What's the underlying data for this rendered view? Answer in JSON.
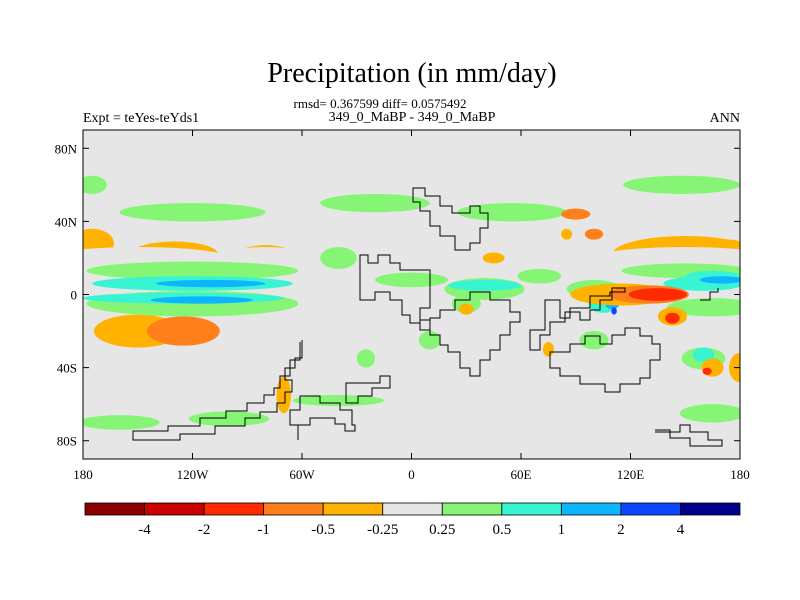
{
  "title": "Precipitation (in mm/day)",
  "stats_line": "rmsd= 0.367599 diff= 0.0575492",
  "subtitle": "349_0_MaBP - 349_0_MaBP",
  "left_label": "Expt = teYes-teYds1",
  "right_label": "ANN",
  "chart_data": {
    "type": "heatmap",
    "variable": "Precipitation difference",
    "units": "mm/day",
    "x_axis": {
      "range": [
        -180,
        180
      ],
      "ticks": [
        -180,
        -120,
        -60,
        0,
        60,
        120,
        180
      ],
      "tick_labels": [
        "180",
        "120W",
        "60W",
        "0",
        "60E",
        "120E",
        "180"
      ]
    },
    "y_axis": {
      "range": [
        -90,
        90
      ],
      "ticks": [
        80,
        40,
        0,
        -40,
        -80
      ],
      "tick_labels": [
        "80N",
        "40N",
        "0",
        "40S",
        "80S"
      ]
    },
    "colorbar": {
      "levels": [
        -4,
        -2,
        -1,
        -0.5,
        -0.25,
        0.25,
        0.5,
        1,
        2,
        4
      ],
      "level_labels": [
        "-4",
        "-2",
        "-1",
        "-0.5",
        "-0.25",
        "0.25",
        "0.5",
        "1",
        "2",
        "4"
      ],
      "colors": [
        "#8b0000",
        "#cc0000",
        "#ff2a00",
        "#ff7f1a",
        "#ffb300",
        "#e6e6e6",
        "#86f576",
        "#37f5d2",
        "#0fb4ff",
        "#0a46ff",
        "#00008b"
      ]
    },
    "background_color": "#e6e6e6",
    "regions": [
      {
        "cls": 4,
        "lon": -175,
        "lat": 28,
        "w": 12,
        "h": 8
      },
      {
        "cls": 4,
        "lon": -130,
        "lat": 22,
        "w": 24,
        "h": 7
      },
      {
        "cls": 4,
        "lon": -80,
        "lat": 22,
        "w": 15,
        "h": 5
      },
      {
        "cls": 4,
        "lon": 150,
        "lat": 22,
        "w": 40,
        "h": 10
      },
      {
        "cls": 4,
        "lon": -150,
        "lat": -20,
        "w": 24,
        "h": 9
      },
      {
        "cls": 3,
        "lon": -125,
        "lat": -20,
        "w": 20,
        "h": 8
      },
      {
        "cls": 4,
        "lon": -70,
        "lat": -55,
        "w": 4,
        "h": 10
      },
      {
        "cls": 3,
        "lon": 100,
        "lat": 33,
        "w": 5,
        "h": 3
      },
      {
        "cls": 4,
        "lon": 85,
        "lat": 33,
        "w": 3,
        "h": 3
      },
      {
        "cls": 4,
        "lon": 180,
        "lat": -40,
        "w": 6,
        "h": 8
      },
      {
        "cls": 4,
        "lon": 175,
        "lat": 22,
        "w": 10,
        "h": 8
      },
      {
        "cls": 5,
        "lon": -150,
        "lat": 20,
        "w": 50,
        "h": 6
      },
      {
        "cls": 5,
        "lon": 150,
        "lat": 20,
        "w": 50,
        "h": 6
      },
      {
        "cls": 5,
        "lon": -80,
        "lat": 20,
        "w": 25,
        "h": 6
      },
      {
        "cls": 6,
        "lon": -175,
        "lat": 60,
        "w": 8,
        "h": 5
      },
      {
        "cls": 6,
        "lon": -120,
        "lat": 45,
        "w": 40,
        "h": 5
      },
      {
        "cls": 6,
        "lon": -20,
        "lat": 50,
        "w": 30,
        "h": 5
      },
      {
        "cls": 6,
        "lon": 55,
        "lat": 45,
        "w": 30,
        "h": 5
      },
      {
        "cls": 6,
        "lon": 148,
        "lat": 60,
        "w": 32,
        "h": 5
      },
      {
        "cls": 6,
        "lon": -120,
        "lat": 13,
        "w": 58,
        "h": 5
      },
      {
        "cls": 6,
        "lon": 150,
        "lat": 13,
        "w": 35,
        "h": 4
      },
      {
        "cls": 6,
        "lon": -120,
        "lat": -5,
        "w": 58,
        "h": 7
      },
      {
        "cls": 6,
        "lon": 165,
        "lat": -7,
        "w": 25,
        "h": 5
      },
      {
        "cls": 6,
        "lon": 0,
        "lat": 8,
        "w": 20,
        "h": 4
      },
      {
        "cls": 6,
        "lon": 40,
        "lat": 3,
        "w": 22,
        "h": 6
      },
      {
        "cls": 6,
        "lon": 70,
        "lat": 10,
        "w": 12,
        "h": 4
      },
      {
        "cls": 6,
        "lon": 100,
        "lat": 3,
        "w": 15,
        "h": 5
      },
      {
        "cls": 6,
        "lon": -160,
        "lat": -70,
        "w": 22,
        "h": 4
      },
      {
        "cls": 6,
        "lon": -100,
        "lat": -68,
        "w": 22,
        "h": 4
      },
      {
        "cls": 6,
        "lon": -40,
        "lat": -58,
        "w": 25,
        "h": 3
      },
      {
        "cls": 6,
        "lon": 165,
        "lat": -65,
        "w": 18,
        "h": 5
      },
      {
        "cls": 6,
        "lon": 100,
        "lat": -25,
        "w": 8,
        "h": 5
      },
      {
        "cls": 6,
        "lon": 160,
        "lat": -35,
        "w": 12,
        "h": 6
      },
      {
        "cls": 6,
        "lon": -25,
        "lat": -35,
        "w": 5,
        "h": 5
      },
      {
        "cls": 6,
        "lon": 10,
        "lat": -25,
        "w": 6,
        "h": 5
      },
      {
        "cls": 6,
        "lon": -40,
        "lat": 20,
        "w": 10,
        "h": 6
      },
      {
        "cls": 6,
        "lon": 30,
        "lat": -5,
        "w": 8,
        "h": 5
      },
      {
        "cls": 7,
        "lon": -120,
        "lat": 6,
        "w": 55,
        "h": 4
      },
      {
        "cls": 7,
        "lon": -125,
        "lat": -2,
        "w": 55,
        "h": 3
      },
      {
        "cls": 7,
        "lon": 40,
        "lat": 5,
        "w": 20,
        "h": 3
      },
      {
        "cls": 7,
        "lon": 160,
        "lat": 6,
        "w": 22,
        "h": 4
      },
      {
        "cls": 7,
        "lon": 165,
        "lat": 10,
        "w": 15,
        "h": 3
      },
      {
        "cls": 7,
        "lon": 105,
        "lat": -5,
        "w": 8,
        "h": 5
      },
      {
        "cls": 7,
        "lon": 160,
        "lat": -33,
        "w": 6,
        "h": 4
      },
      {
        "cls": 8,
        "lon": -110,
        "lat": 6,
        "w": 30,
        "h": 2
      },
      {
        "cls": 8,
        "lon": -115,
        "lat": -3,
        "w": 28,
        "h": 2
      },
      {
        "cls": 8,
        "lon": 170,
        "lat": 8,
        "w": 12,
        "h": 2
      },
      {
        "cls": 8,
        "lon": 110,
        "lat": -5,
        "w": 4,
        "h": 3
      },
      {
        "cls": 9,
        "lon": 111,
        "lat": -9,
        "w": 1.5,
        "h": 2
      },
      {
        "cls": 4,
        "lon": 115,
        "lat": 0,
        "w": 28,
        "h": 6
      },
      {
        "cls": 3,
        "lon": 130,
        "lat": 0,
        "w": 22,
        "h": 5
      },
      {
        "cls": 2,
        "lon": 135,
        "lat": 0,
        "w": 16,
        "h": 3.5
      },
      {
        "cls": 4,
        "lon": 143,
        "lat": -12,
        "w": 8,
        "h": 5
      },
      {
        "cls": 2,
        "lon": 143,
        "lat": -13,
        "w": 4,
        "h": 3
      },
      {
        "cls": 4,
        "lon": 165,
        "lat": -40,
        "w": 6,
        "h": 5
      },
      {
        "cls": 2,
        "lon": 162,
        "lat": -42,
        "w": 2.5,
        "h": 2
      },
      {
        "cls": 3,
        "lon": 90,
        "lat": 44,
        "w": 8,
        "h": 3
      },
      {
        "cls": 4,
        "lon": 75,
        "lat": -30,
        "w": 3,
        "h": 4
      },
      {
        "cls": 4,
        "lon": 30,
        "lat": -8,
        "w": 4,
        "h": 3
      },
      {
        "cls": 4,
        "lon": 45,
        "lat": 20,
        "w": 6,
        "h": 3
      }
    ]
  }
}
